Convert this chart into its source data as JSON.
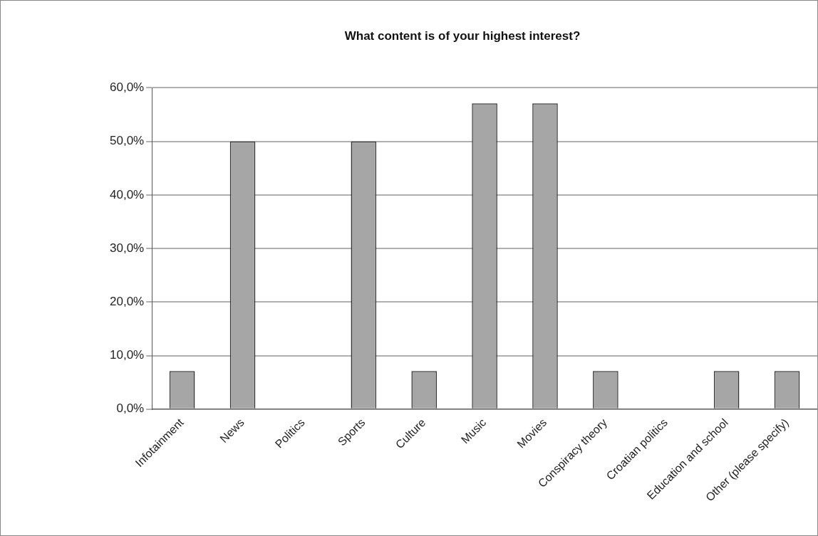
{
  "chart_data": {
    "type": "bar",
    "title": "What content is of your highest interest?",
    "categories": [
      "Infotainment",
      "News",
      "Politics",
      "Sports",
      "Culture",
      "Music",
      "Movies",
      "Conspiracy theory",
      "Croatian politics",
      "Education and school",
      "Other (please specify)"
    ],
    "values": [
      7.1,
      50,
      0,
      50,
      7.1,
      57.1,
      57.1,
      7.1,
      0,
      7.1,
      7.1
    ],
    "color": "#a6a6a6",
    "ylim": [
      0,
      60
    ],
    "yticks": [
      {
        "value": 0,
        "label": "0,0%"
      },
      {
        "value": 10,
        "label": "10,0%"
      },
      {
        "value": 20,
        "label": "20,0%"
      },
      {
        "value": 30,
        "label": "30,0%"
      },
      {
        "value": 40,
        "label": "40,0%"
      },
      {
        "value": 50,
        "label": "50,0%"
      },
      {
        "value": 60,
        "label": "60,0%"
      }
    ],
    "grid": "y",
    "legend": false
  }
}
